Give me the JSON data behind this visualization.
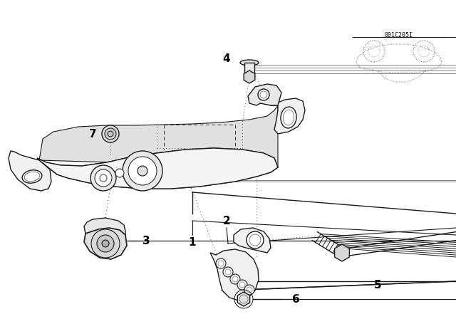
{
  "bg_color": "#ffffff",
  "line_color": "#1a1a1a",
  "fig_width": 6.4,
  "fig_height": 4.48,
  "dpi": 100,
  "part_number_text": "001C205I",
  "lw": 1.0
}
